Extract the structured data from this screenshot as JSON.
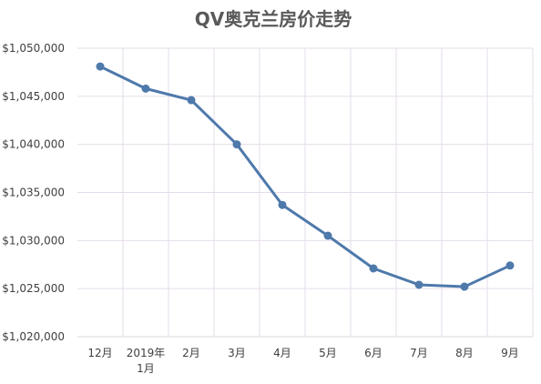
{
  "colors": {
    "background": "#ffffff",
    "title": "#595959",
    "series_line": "#4e79ab",
    "series_marker": "#4e79ab",
    "gridline": "#e6dcea",
    "axis_line": "#d9d9d9",
    "tick_text": "#404040"
  },
  "chart_data": {
    "type": "line",
    "title": "QV奥克兰房价走势",
    "xlabel": "",
    "ylabel": "",
    "categories": [
      "12月",
      "2019年\n1月",
      "2月",
      "3月",
      "4月",
      "5月",
      "6月",
      "7月",
      "8月",
      "9月"
    ],
    "series": [
      {
        "values": [
          1048100,
          1045800,
          1044600,
          1040000,
          1033700,
          1030500,
          1027100,
          1025400,
          1025200,
          1027400
        ]
      }
    ],
    "ylim": [
      1020000,
      1050000
    ],
    "y_ticks": [
      1020000,
      1025000,
      1030000,
      1035000,
      1040000,
      1045000,
      1050000
    ],
    "y_tick_labels": [
      "$1,020,000",
      "$1,025,000",
      "$1,030,000",
      "$1,035,000",
      "$1,040,000",
      "$1,045,000",
      "$1,050,000"
    ],
    "grid": {
      "horizontal": true,
      "vertical": true
    },
    "markers": true,
    "legend": "none"
  }
}
